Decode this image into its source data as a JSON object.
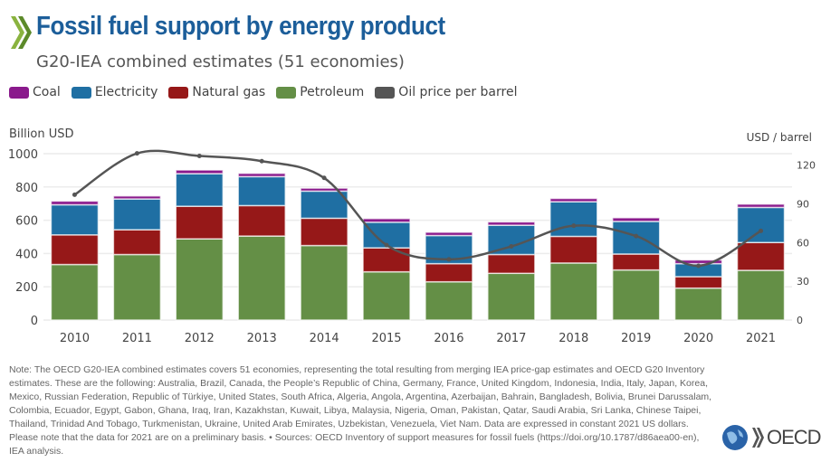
{
  "header": {
    "title": "Fossil fuel support by energy product",
    "subtitle": "G20-IEA combined estimates (51 economies)"
  },
  "colors": {
    "Coal": "#8a1a8c",
    "Electricity": "#1f6fa3",
    "Natural gas": "#961818",
    "Petroleum": "#648f46",
    "Oil price per barrel": "#555555",
    "title": "#1c5e9a"
  },
  "legend": [
    "Coal",
    "Electricity",
    "Natural gas",
    "Petroleum",
    "Oil price per barrel"
  ],
  "chart_data": {
    "type": "bar",
    "stacked": true,
    "categories": [
      "2010",
      "2011",
      "2012",
      "2013",
      "2014",
      "2015",
      "2016",
      "2017",
      "2018",
      "2019",
      "2020",
      "2021"
    ],
    "ylabel": "Billion USD",
    "y2label": "USD / barrel",
    "ylim": [
      0,
      1000
    ],
    "yticks": [
      0,
      200,
      400,
      600,
      800,
      1000
    ],
    "y2lim": [
      0,
      120
    ],
    "y2ticks": [
      0,
      30,
      60,
      90,
      120
    ],
    "grid": true,
    "legend_position": "top-left",
    "series": [
      {
        "name": "Petroleum",
        "values": [
          334,
          394,
          488,
          505,
          448,
          290,
          230,
          281,
          343,
          301,
          192,
          299
        ]
      },
      {
        "name": "Natural gas",
        "values": [
          178,
          149,
          196,
          183,
          164,
          144,
          109,
          113,
          160,
          96,
          69,
          167
        ]
      },
      {
        "name": "Electricity",
        "values": [
          181,
          185,
          196,
          174,
          163,
          154,
          169,
          176,
          208,
          196,
          78,
          211
        ]
      },
      {
        "name": "Coal",
        "values": [
          22,
          18,
          22,
          20,
          18,
          22,
          20,
          20,
          20,
          22,
          22,
          20
        ]
      }
    ],
    "line_series": {
      "name": "Oil price per barrel",
      "axis": "right",
      "type": "line",
      "values": [
        97,
        129,
        127,
        123,
        110,
        58,
        47,
        57,
        73,
        65,
        42,
        69
      ]
    }
  },
  "note": "Note: The OECD G20-IEA combined estimates covers 51 economies, representing the total resulting from merging IEA price-gap estimates and OECD G20 Inventory estimates. These are the following: Australia, Brazil, Canada, the People’s Republic of China, Germany, France, United Kingdom, Indonesia, India, Italy, Japan, Korea, Mexico, Russian Federation, Republic of Türkiye, United States, South Africa, Algeria, Angola, Argentina, Azerbaijan, Bahrain, Bangladesh, Bolivia, Brunei Darussalam, Colombia, Ecuador, Egypt, Gabon, Ghana, Iraq, Iran, Kazakhstan, Kuwait, Libya, Malaysia, Nigeria, Oman, Pakistan, Qatar, Saudi Arabia, Sri Lanka, Chinese Taipei, Thailand, Trinidad And Tobago, Turkmenistan, Ukraine, United Arab Emirates, Uzbekistan, Venezuela, Viet Nam. Data are expressed in constant 2021 US dollars. Please note that the data for 2021 are on a preliminary basis. • Sources: OECD Inventory of support measures for fossil fuels (https://doi.org/10.1787/d86aea00-en), IEA analysis.",
  "logo": "OECD"
}
